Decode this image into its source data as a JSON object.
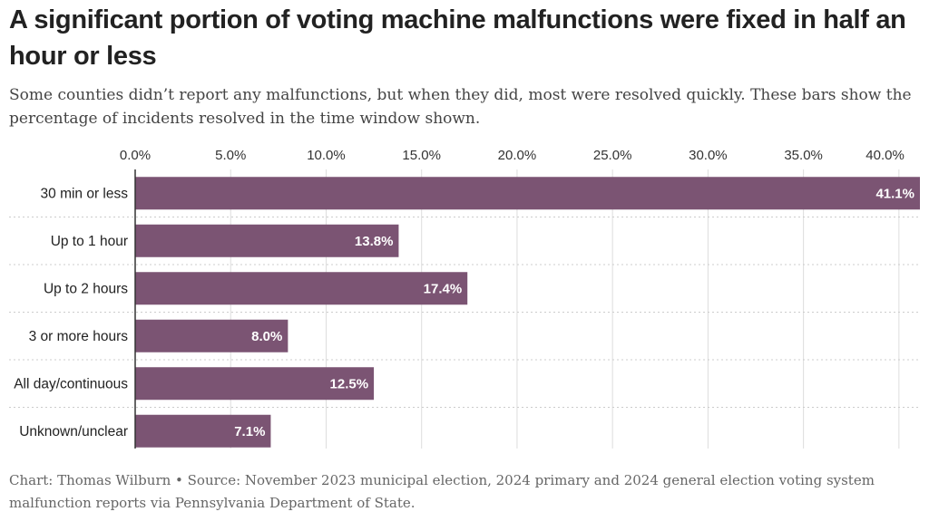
{
  "header": {
    "title": "A significant portion of voting machine malfunctions were fixed in half an hour or less",
    "subtitle": "Some counties didn’t report any malfunctions, but when they did, most were resolved quickly. These bars show the percentage of incidents resolved in the time window shown."
  },
  "footer": {
    "credit": "Chart: Thomas Wilburn • Source: November 2023 municipal election, 2024 primary and 2024 general election voting system malfunction reports via Pennsylvania Department of State."
  },
  "colors": {
    "bar": "#7b5473",
    "grid": "#dddddd",
    "axis": "#333333"
  },
  "chart_data": {
    "type": "bar",
    "orientation": "horizontal",
    "title": "A significant portion of voting machine malfunctions were fixed in half an hour or less",
    "xlabel": "",
    "ylabel": "",
    "xlim": [
      0,
      41.1
    ],
    "ticks": [
      0,
      5,
      10,
      15,
      20,
      25,
      30,
      35,
      40
    ],
    "tick_labels": [
      "0.0%",
      "5.0%",
      "10.0%",
      "15.0%",
      "20.0%",
      "25.0%",
      "30.0%",
      "35.0%",
      "40.0%"
    ],
    "categories": [
      "30 min or less",
      "Up to 1 hour",
      "Up to 2 hours",
      "3 or more hours",
      "All day/continuous",
      "Unknown/unclear"
    ],
    "values": [
      41.1,
      13.8,
      17.4,
      8.0,
      12.5,
      7.1
    ],
    "value_labels": [
      "41.1%",
      "13.8%",
      "17.4%",
      "8.0%",
      "12.5%",
      "7.1%"
    ],
    "grid": true,
    "legend": "none"
  }
}
